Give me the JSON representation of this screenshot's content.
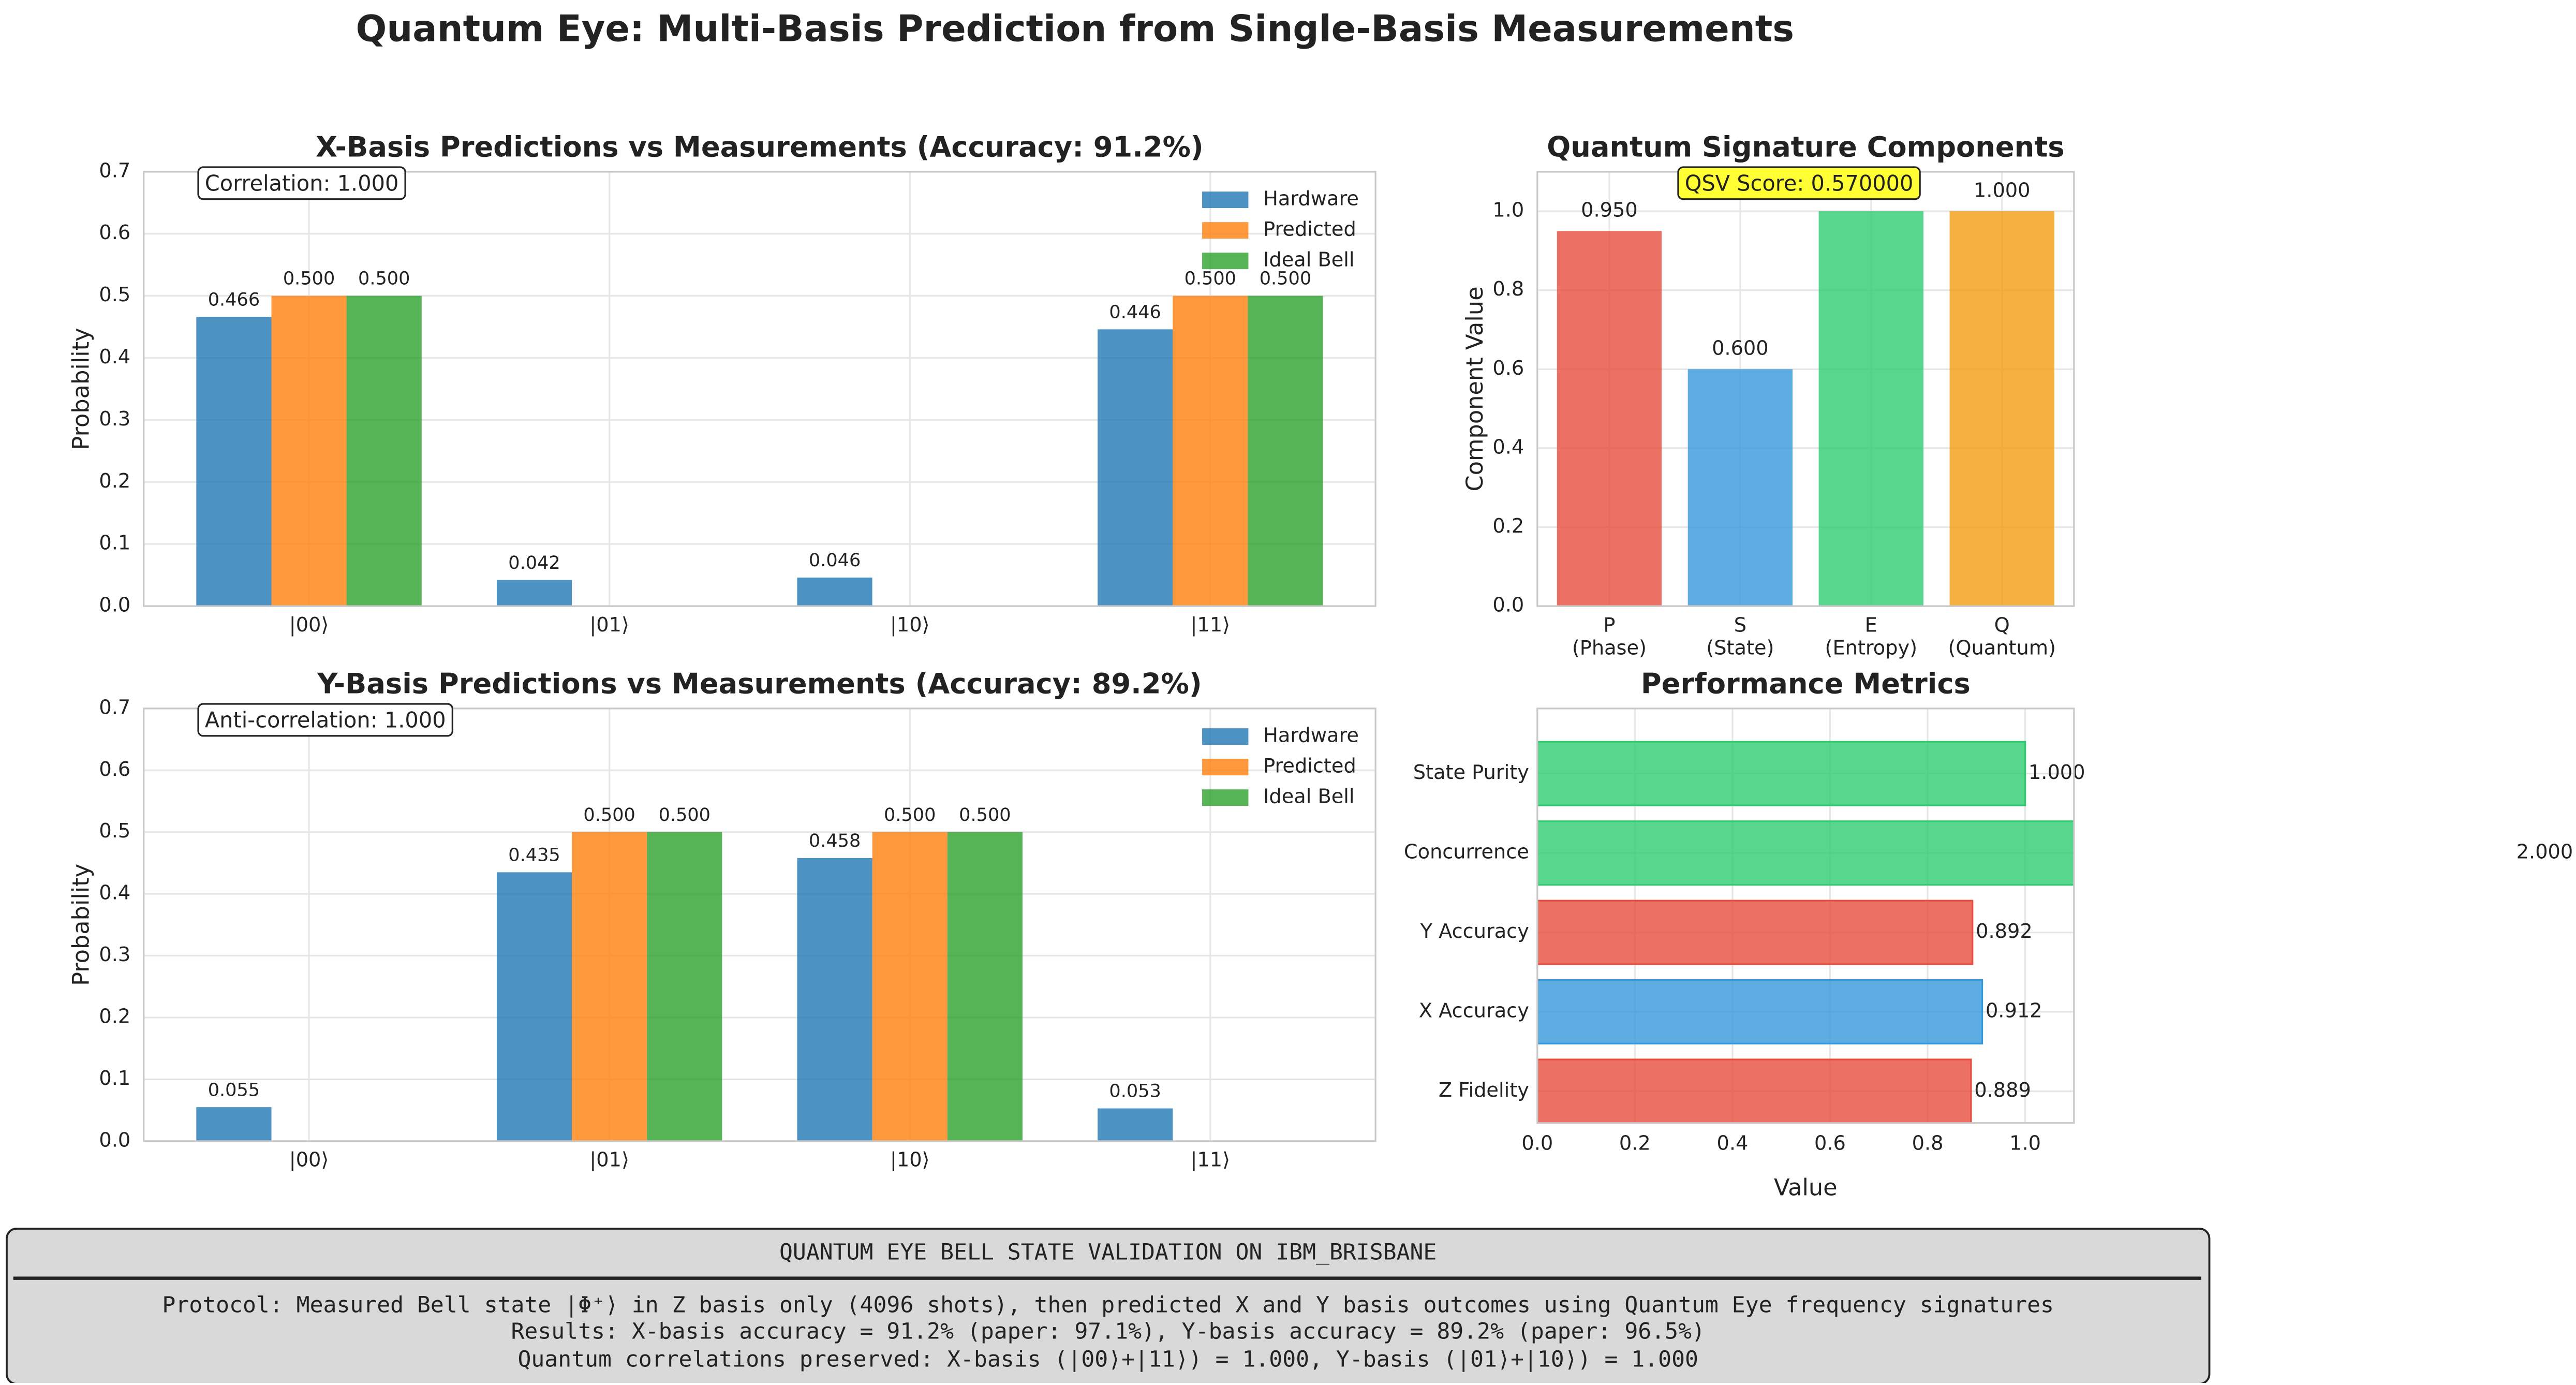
{
  "title": "Quantum Eye: Multi-Basis Prediction from Single-Basis Measurements",
  "chart_data": [
    {
      "type": "bar",
      "title": "X-Basis Predictions vs Measurements (Accuracy: 91.2%)",
      "categories": [
        "|00⟩",
        "|01⟩",
        "|10⟩",
        "|11⟩"
      ],
      "series": [
        {
          "name": "Hardware",
          "color": "#1f77b4",
          "values": [
            0.466,
            0.042,
            0.046,
            0.446
          ],
          "value_labels": [
            "0.466",
            "0.042",
            "0.046",
            "0.446"
          ]
        },
        {
          "name": "Predicted",
          "color": "#ff7f0e",
          "values": [
            0.5,
            0,
            0,
            0.5
          ],
          "value_labels": [
            "0.500",
            null,
            null,
            "0.500"
          ]
        },
        {
          "name": "Ideal Bell",
          "color": "#2ca02c",
          "values": [
            0.5,
            0,
            0,
            0.5
          ],
          "value_labels": [
            "0.500",
            null,
            null,
            "0.500"
          ]
        }
      ],
      "ylabel": "Probability",
      "ylim": [
        0,
        0.7
      ],
      "yticks": [
        {
          "value": 0,
          "label": "0.0"
        },
        0.1,
        0.2,
        0.3,
        0.4,
        0.5,
        0.6,
        0.7
      ],
      "grid": true,
      "legend": "upper right",
      "annotation": "Correlation: 1.000",
      "annotation_color": "#ffffff"
    },
    {
      "type": "bar",
      "title": "Y-Basis Predictions vs Measurements (Accuracy: 89.2%)",
      "categories": [
        "|00⟩",
        "|01⟩",
        "|10⟩",
        "|11⟩"
      ],
      "series": [
        {
          "name": "Hardware",
          "color": "#1f77b4",
          "values": [
            0.055,
            0.435,
            0.458,
            0.053
          ],
          "value_labels": [
            "0.055",
            "0.435",
            "0.458",
            "0.053"
          ]
        },
        {
          "name": "Predicted",
          "color": "#ff7f0e",
          "values": [
            0,
            0.5,
            0.5,
            0
          ],
          "value_labels": [
            null,
            "0.500",
            "0.500",
            null
          ]
        },
        {
          "name": "Ideal Bell",
          "color": "#2ca02c",
          "values": [
            0,
            0.5,
            0.5,
            0
          ],
          "value_labels": [
            null,
            "0.500",
            "0.500",
            null
          ]
        }
      ],
      "ylabel": "Probability",
      "ylim": [
        0,
        0.7
      ],
      "yticks": [
        {
          "value": 0,
          "label": "0.0"
        },
        0.1,
        0.2,
        0.3,
        0.4,
        0.5,
        0.6,
        0.7
      ],
      "grid": true,
      "legend": "upper right",
      "annotation": "Anti-correlation: 1.000",
      "annotation_color": "#ffffff"
    },
    {
      "type": "bar",
      "title": "Quantum Signature Components",
      "categories": [
        "P\n(Phase)",
        "S\n(State)",
        "E\n(Entropy)",
        "Q\n(Quantum)"
      ],
      "values": [
        0.95,
        0.6,
        1.0,
        1.0
      ],
      "value_labels": [
        "0.950",
        "0.600",
        "1.000",
        "1.000"
      ],
      "colors": [
        "#e74c3c",
        "#3498db",
        "#2ecc71",
        "#f39c12"
      ],
      "ylabel": "Component Value",
      "ylim": [
        0,
        1.1
      ],
      "yticks": [
        {
          "value": 0,
          "label": "0.0"
        },
        0.2,
        0.4,
        0.6,
        0.8,
        {
          "value": 1,
          "label": "1.0"
        }
      ],
      "grid": true,
      "annotation": "QSV Score: 0.570000",
      "annotation_color": "#ffff33"
    },
    {
      "type": "barh",
      "title": "Performance Metrics",
      "categories": [
        "Z Fidelity",
        "X Accuracy",
        "Y Accuracy",
        "Concurrence",
        "State Purity"
      ],
      "values": [
        0.889,
        0.912,
        0.892,
        2.0,
        1.0
      ],
      "value_labels": [
        "0.889",
        "0.912",
        "0.892",
        "2.000",
        "1.000"
      ],
      "colors": [
        "#e74c3c",
        "#3498db",
        "#e74c3c",
        "#2ecc71",
        "#2ecc71"
      ],
      "xlabel": "Value",
      "xlim": [
        0,
        1.1
      ],
      "xticks": [
        {
          "value": 0,
          "label": "0.0"
        },
        0.2,
        0.4,
        0.6,
        0.8,
        {
          "value": 1,
          "label": "1.0"
        }
      ],
      "grid": true
    }
  ],
  "footer": {
    "heading": "QUANTUM EYE BELL STATE VALIDATION ON IBM_BRISBANE",
    "lines": [
      "Protocol: Measured Bell state |Φ⁺⟩ in Z basis only (4096 shots), then predicted X and Y basis outcomes using Quantum Eye frequency signatures",
      "Results: X-basis accuracy = 91.2% (paper: 97.1%), Y-basis accuracy = 89.2% (paper: 96.5%)",
      "Quantum correlations preserved: X-basis (|00⟩+|11⟩) = 1.000, Y-basis (|01⟩+|10⟩) = 1.000"
    ]
  }
}
